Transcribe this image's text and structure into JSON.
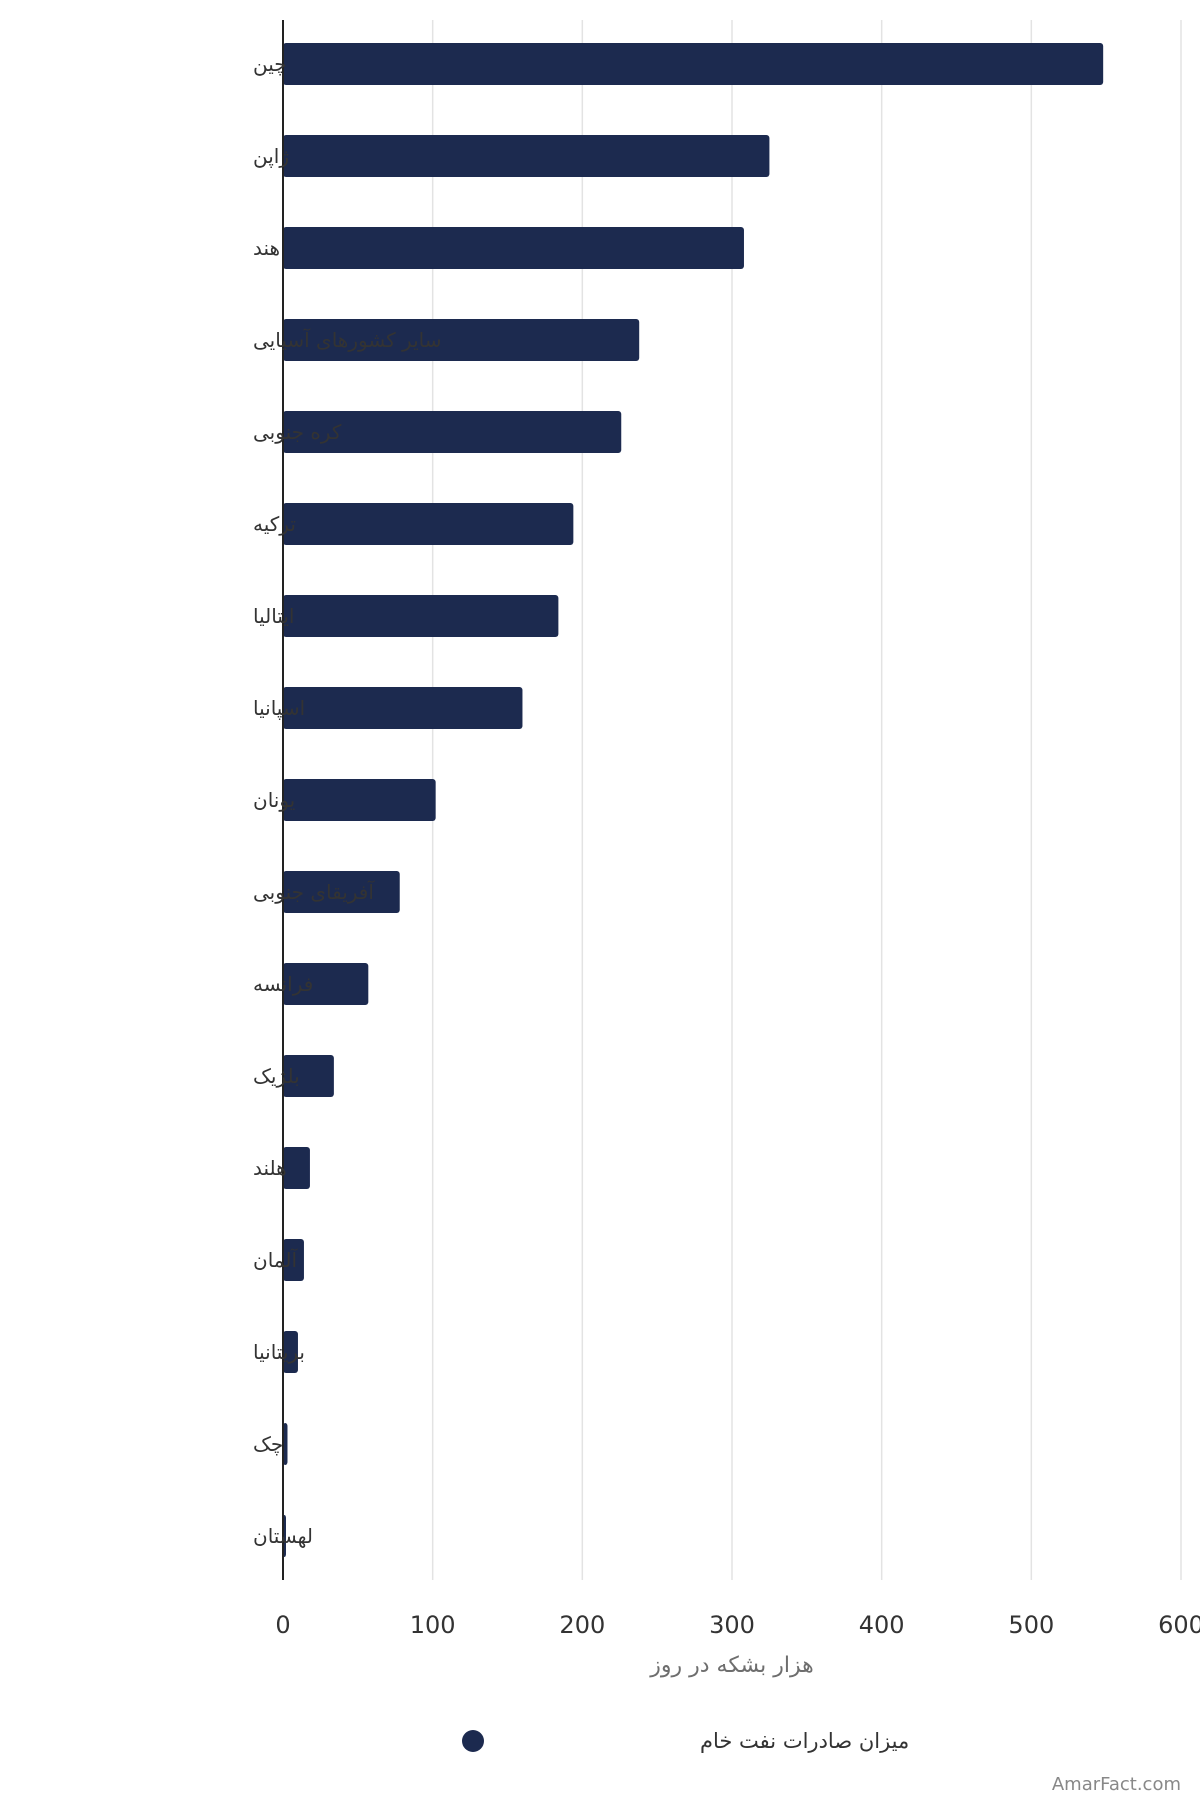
{
  "chart_data": {
    "type": "bar",
    "orientation": "horizontal",
    "categories": [
      "چین",
      "ژاپن",
      "هند",
      "سایر کشورهای آسیایی",
      "کره جنوبی",
      "ترکیه",
      "ایتالیا",
      "اسپانیا",
      "یونان",
      "آفریقای جنوبی",
      "فرانسه",
      "بلژیک",
      "هلند",
      "آلمان",
      "بریتانیا",
      "چک",
      "لهستان"
    ],
    "series": [
      {
        "name": "میزان صادرات نفت خام",
        "color": "#1c2a4f",
        "values": [
          548,
          325,
          308,
          238,
          226,
          194,
          184,
          160,
          102,
          78,
          57,
          34,
          18,
          14,
          10,
          3,
          2
        ]
      }
    ],
    "xlabel": "هزار بشکه در روز",
    "xlim": [
      0,
      600
    ],
    "xticks": [
      0,
      100,
      200,
      300,
      400,
      500,
      600
    ],
    "grid": true,
    "legend_position": "bottom",
    "watermark": "AmarFact.com"
  }
}
